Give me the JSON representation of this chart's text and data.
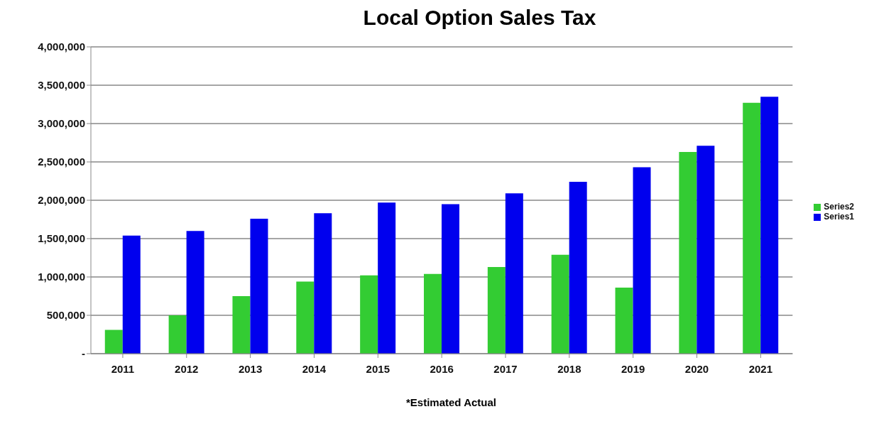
{
  "chart_data": {
    "type": "bar",
    "title": "Local Option Sales Tax",
    "categories": [
      "2011",
      "2012",
      "2013",
      "2014",
      "2015",
      "2016",
      "2017",
      "2018",
      "2019",
      "2020",
      "2021"
    ],
    "series": [
      {
        "name": "Series2",
        "color": "#33cc33",
        "values": [
          310000,
          500000,
          750000,
          940000,
          1020000,
          1040000,
          1130000,
          1290000,
          860000,
          2630000,
          3270000
        ]
      },
      {
        "name": "Series1",
        "color": "#0000ee",
        "values": [
          1540000,
          1600000,
          1760000,
          1830000,
          1970000,
          1950000,
          2090000,
          2240000,
          2430000,
          2710000,
          3350000
        ]
      }
    ],
    "ylim": [
      0,
      4000000
    ],
    "yticks": [
      {
        "value": 0,
        "label": "-"
      },
      {
        "value": 500000,
        "label": "500,000"
      },
      {
        "value": 1000000,
        "label": "1,000,000"
      },
      {
        "value": 1500000,
        "label": "1,500,000"
      },
      {
        "value": 2000000,
        "label": "2,000,000"
      },
      {
        "value": 2500000,
        "label": "2,500,000"
      },
      {
        "value": 3000000,
        "label": "3,000,000"
      },
      {
        "value": 3500000,
        "label": "3,500,000"
      },
      {
        "value": 4000000,
        "label": "4,000,000"
      }
    ],
    "grid": "y",
    "legend": "right",
    "annotations": [
      "*Estimated Actual"
    ]
  }
}
